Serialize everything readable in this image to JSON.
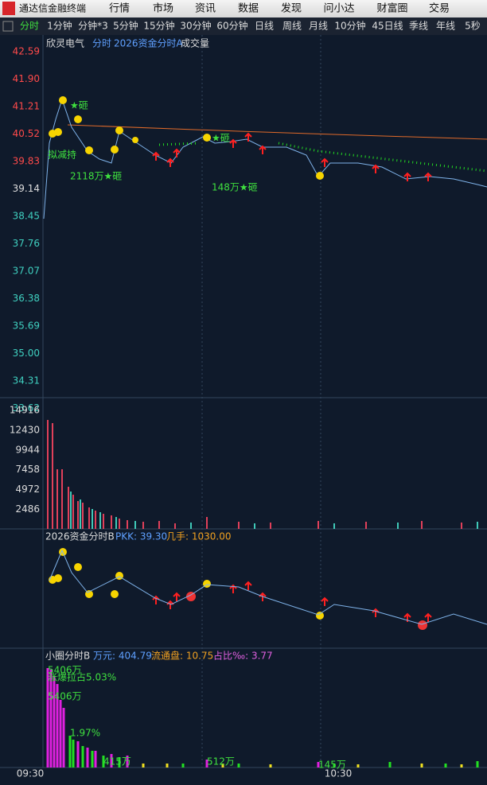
{
  "header": {
    "app_title": "通达信金融终端",
    "menu": [
      "行情",
      "市场",
      "资讯",
      "数据",
      "发现",
      "问小达",
      "财富圈",
      "交易"
    ]
  },
  "tabs": [
    "分时",
    "1分钟",
    "分钟*3",
    "5分钟",
    "15分钟",
    "30分钟",
    "60分钟",
    "日线",
    "周线",
    "月线",
    "10分钟",
    "45日线",
    "季线",
    "年线",
    "5秒"
  ],
  "main_panel": {
    "stock": "欣灵电气",
    "mode": "分时",
    "indicator": "2026资金分时A",
    "volume_label": "成交量",
    "price_axis": [
      "42.59",
      "41.90",
      "41.21",
      "40.52",
      "39.83",
      "39.14",
      "38.45",
      "37.76",
      "37.07",
      "36.38",
      "35.69",
      "35.00",
      "34.31",
      "33.62"
    ],
    "volume_axis": [
      "14916",
      "12430",
      "9944",
      "7458",
      "4972",
      "2486"
    ],
    "annotations": [
      "★砸",
      "拟减持",
      "2118万★砸",
      "★砸",
      "148万★砸"
    ]
  },
  "panel_b": {
    "title": "2026资金分时B",
    "pkk": "PKK: 39.30",
    "jishou": "几手: 1030.00"
  },
  "panel_c": {
    "title": "小圈分时B",
    "wanyuan": "万元: 404.79",
    "liutong": "流通盘: 10.75",
    "zhanbi": "占比‰: 3.77",
    "annotations": [
      "5406万",
      "涨爆拉占5.03%",
      "5406万",
      "1.97%",
      "415万",
      "512万",
      "145万"
    ]
  },
  "time_axis": [
    "09:30",
    "10:30"
  ]
}
